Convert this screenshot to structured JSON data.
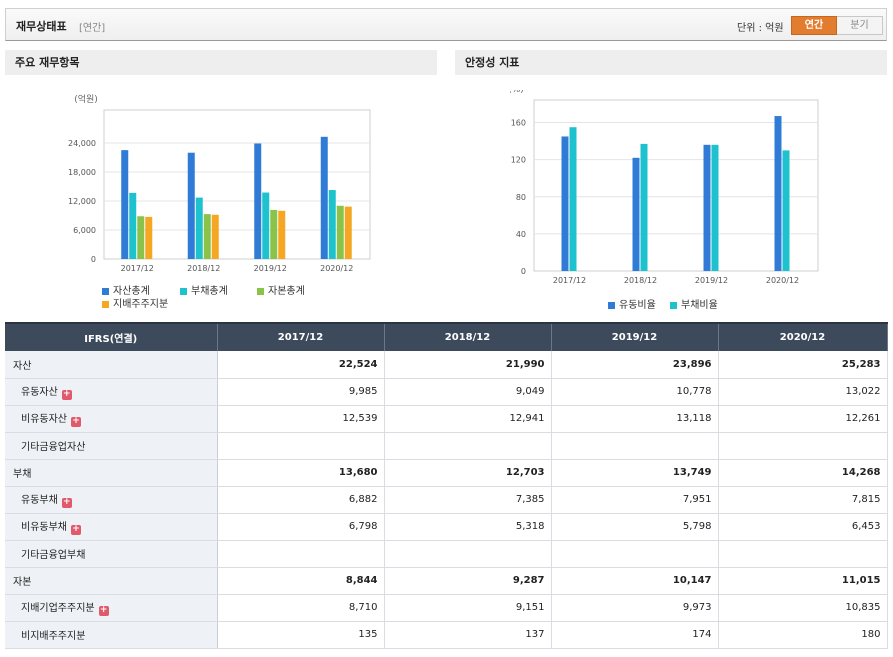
{
  "header": {
    "title": "재무상태표",
    "period_tag": "[연간]",
    "unit_label": "단위 : 억원",
    "toggle_annual": "연간",
    "toggle_quarter": "분기"
  },
  "panels": {
    "left_title": "주요 재무항목",
    "right_title": "안정성 지표"
  },
  "chart_data": [
    {
      "type": "bar",
      "title": "주요 재무항목",
      "ylabel": "(억원)",
      "ylim": [
        0,
        30000
      ],
      "yticks": [
        "0",
        "6,000",
        "12,000",
        "18,000",
        "24,000"
      ],
      "ytick_values": [
        0,
        6000,
        12000,
        18000,
        24000
      ],
      "categories": [
        "2017/12",
        "2018/12",
        "2019/12",
        "2020/12"
      ],
      "grid": true,
      "legend": "bottom",
      "series": [
        {
          "name": "자산총계",
          "color": "#2f7bd6",
          "values": [
            22524,
            21990,
            23896,
            25283
          ]
        },
        {
          "name": "부채총계",
          "color": "#1ec2cf",
          "values": [
            13680,
            12703,
            13749,
            14268
          ]
        },
        {
          "name": "자본총계",
          "color": "#8bc34a",
          "values": [
            8844,
            9287,
            10147,
            11015
          ]
        },
        {
          "name": "지배주주지분",
          "color": "#f5a623",
          "values": [
            8710,
            9151,
            9973,
            10835
          ]
        }
      ]
    },
    {
      "type": "bar",
      "title": "안정성 지표",
      "ylabel": "(%)",
      "ylim": [
        0,
        180
      ],
      "yticks": [
        "0",
        "40",
        "80",
        "120",
        "160"
      ],
      "ytick_values": [
        0,
        40,
        80,
        120,
        160
      ],
      "categories": [
        "2017/12",
        "2018/12",
        "2019/12",
        "2020/12"
      ],
      "grid": true,
      "legend": "bottom",
      "series": [
        {
          "name": "유동비율",
          "color": "#2f7bd6",
          "values": [
            145,
            122,
            136,
            167
          ]
        },
        {
          "name": "부채비율",
          "color": "#1ec2cf",
          "values": [
            155,
            137,
            136,
            130
          ]
        }
      ]
    }
  ],
  "table": {
    "corner": "IFRS(연결)",
    "columns": [
      "2017/12",
      "2018/12",
      "2019/12",
      "2020/12"
    ],
    "rows": [
      {
        "label": "자산",
        "bold": true,
        "sub": false,
        "plus": false,
        "values": [
          "22,524",
          "21,990",
          "23,896",
          "25,283"
        ]
      },
      {
        "label": "유동자산",
        "bold": false,
        "sub": true,
        "plus": true,
        "values": [
          "9,985",
          "9,049",
          "10,778",
          "13,022"
        ]
      },
      {
        "label": "비유동자산",
        "bold": false,
        "sub": true,
        "plus": true,
        "values": [
          "12,539",
          "12,941",
          "13,118",
          "12,261"
        ]
      },
      {
        "label": "기타금융업자산",
        "bold": false,
        "sub": true,
        "plus": false,
        "values": [
          "",
          "",
          "",
          ""
        ]
      },
      {
        "label": "부채",
        "bold": true,
        "sub": false,
        "plus": false,
        "values": [
          "13,680",
          "12,703",
          "13,749",
          "14,268"
        ]
      },
      {
        "label": "유동부채",
        "bold": false,
        "sub": true,
        "plus": true,
        "values": [
          "6,882",
          "7,385",
          "7,951",
          "7,815"
        ]
      },
      {
        "label": "비유동부채",
        "bold": false,
        "sub": true,
        "plus": true,
        "values": [
          "6,798",
          "5,318",
          "5,798",
          "6,453"
        ]
      },
      {
        "label": "기타금융업부채",
        "bold": false,
        "sub": true,
        "plus": false,
        "values": [
          "",
          "",
          "",
          ""
        ]
      },
      {
        "label": "자본",
        "bold": true,
        "sub": false,
        "plus": false,
        "values": [
          "8,844",
          "9,287",
          "10,147",
          "11,015"
        ]
      },
      {
        "label": "지배기업주주지분",
        "bold": false,
        "sub": true,
        "plus": true,
        "values": [
          "8,710",
          "9,151",
          "9,973",
          "10,835"
        ]
      },
      {
        "label": "비지배주주지분",
        "bold": false,
        "sub": true,
        "plus": false,
        "values": [
          "135",
          "137",
          "174",
          "180"
        ]
      }
    ]
  }
}
